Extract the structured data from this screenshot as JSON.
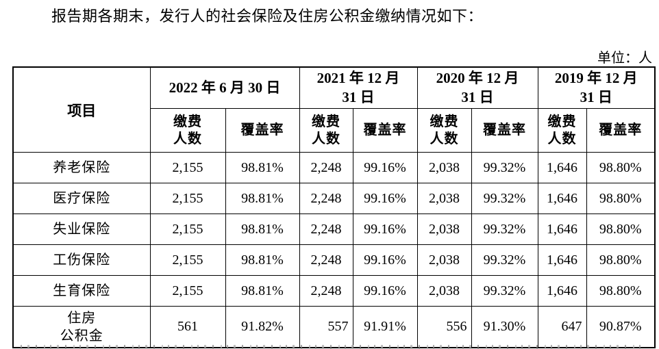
{
  "colors": {
    "text": "#000000",
    "border": "#000000",
    "background": "#ffffff"
  },
  "page": {
    "intro_text": "报告期各期末，发行人的社会保险及住房公积金缴纳情况如下：",
    "unit_label": "单位：人"
  },
  "table": {
    "item_header": "项目",
    "period_headers": [
      "2022 年 6 月 30 日",
      "2021 年 12 月\n31 日",
      "2020 年 12 月\n31 日",
      "2019 年 12 月\n31 日"
    ],
    "sub_headers": {
      "payers": "缴费\n人数",
      "coverage": "覆盖率"
    },
    "rows": [
      {
        "label": "养老保险",
        "values": [
          "2,155",
          "98.81%",
          "2,248",
          "99.16%",
          "2,038",
          "99.32%",
          "1,646",
          "98.80%"
        ]
      },
      {
        "label": "医疗保险",
        "values": [
          "2,155",
          "98.81%",
          "2,248",
          "99.16%",
          "2,038",
          "99.32%",
          "1,646",
          "98.80%"
        ]
      },
      {
        "label": "失业保险",
        "values": [
          "2,155",
          "98.81%",
          "2,248",
          "99.16%",
          "2,038",
          "99.32%",
          "1,646",
          "98.80%"
        ]
      },
      {
        "label": "工伤保险",
        "values": [
          "2,155",
          "98.81%",
          "2,248",
          "99.16%",
          "2,038",
          "99.32%",
          "1,646",
          "98.80%"
        ]
      },
      {
        "label": "生育保险",
        "values": [
          "2,155",
          "98.81%",
          "2,248",
          "99.16%",
          "2,038",
          "99.32%",
          "1,646",
          "98.80%"
        ]
      },
      {
        "label": "住房\n公积金",
        "values": [
          "561",
          "91.82%",
          "557",
          "91.91%",
          "556",
          "91.30%",
          "647",
          "90.87%"
        ],
        "right_aligned_value_indexes": [
          2,
          4,
          6
        ]
      }
    ]
  }
}
